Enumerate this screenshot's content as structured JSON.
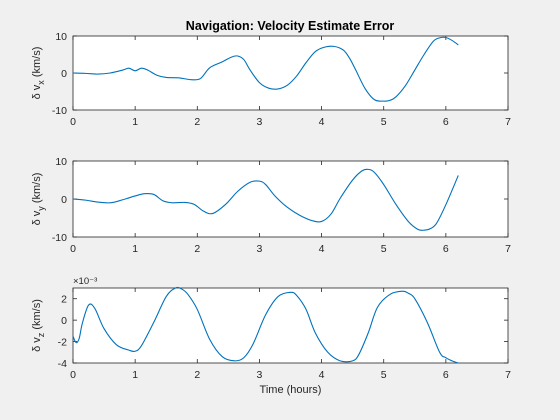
{
  "figure": {
    "title": "Navigation: Velocity Estimate Error",
    "background": "#f0f0f0",
    "axes_background": "#ffffff",
    "line_color": "#0072bd"
  },
  "chart_data": [
    {
      "type": "line",
      "ylabel": {
        "main": "δ v",
        "sub": "x",
        "unit": " (km/s)"
      },
      "xlabel": "",
      "xlim": [
        0,
        7
      ],
      "ylim": [
        -10,
        10
      ],
      "xticks": [
        "0",
        "1",
        "2",
        "3",
        "4",
        "5",
        "6",
        "7"
      ],
      "yticks": [
        "-10",
        "0",
        "10"
      ],
      "ytick_values": [
        -10,
        0,
        10
      ],
      "exponent": "",
      "grid": false,
      "series": [
        {
          "x": [
            0,
            0.2,
            0.4,
            0.6,
            0.8,
            0.9,
            1.0,
            1.1,
            1.2,
            1.35,
            1.5,
            1.7,
            1.9,
            2.05,
            2.2,
            2.4,
            2.55,
            2.65,
            2.75,
            2.85,
            3.0,
            3.15,
            3.3,
            3.45,
            3.6,
            3.75,
            3.9,
            4.05,
            4.2,
            4.35,
            4.45,
            4.55,
            4.7,
            4.85,
            5.0,
            5.1,
            5.2,
            5.35,
            5.5,
            5.65,
            5.8,
            5.9,
            6.0,
            6.1,
            6.2
          ],
          "y": [
            0,
            -0.1,
            -0.3,
            0,
            0.8,
            1.3,
            0.6,
            1.3,
            0.8,
            -0.6,
            -1.2,
            -1.3,
            -1.8,
            -1.5,
            1.4,
            3.0,
            4.3,
            4.6,
            3.6,
            0.8,
            -2.6,
            -4.1,
            -4.3,
            -3.3,
            -0.8,
            2.8,
            5.8,
            7.0,
            7.2,
            6.2,
            4.0,
            0.8,
            -4.2,
            -7.2,
            -7.6,
            -7.4,
            -6.4,
            -3.4,
            0.8,
            5.0,
            8.6,
            9.5,
            9.6,
            8.8,
            7.6
          ]
        }
      ]
    },
    {
      "type": "line",
      "ylabel": {
        "main": "δ v",
        "sub": "y",
        "unit": " (km/s)"
      },
      "xlabel": "",
      "xlim": [
        0,
        7
      ],
      "ylim": [
        -10,
        10
      ],
      "xticks": [
        "0",
        "1",
        "2",
        "3",
        "4",
        "5",
        "6",
        "7"
      ],
      "yticks": [
        "-10",
        "0",
        "10"
      ],
      "ytick_values": [
        -10,
        0,
        10
      ],
      "exponent": "",
      "grid": false,
      "series": [
        {
          "x": [
            0,
            0.2,
            0.4,
            0.6,
            0.8,
            1.0,
            1.15,
            1.3,
            1.45,
            1.6,
            1.8,
            1.95,
            2.1,
            2.25,
            2.45,
            2.65,
            2.85,
            3.0,
            3.1,
            3.25,
            3.45,
            3.65,
            3.85,
            4.0,
            4.15,
            4.3,
            4.5,
            4.65,
            4.75,
            4.85,
            5.0,
            5.2,
            5.4,
            5.55,
            5.65,
            5.75,
            5.85,
            6.0,
            6.2
          ],
          "y": [
            0,
            -0.3,
            -0.8,
            -1.0,
            -0.2,
            0.8,
            1.4,
            1.2,
            -0.5,
            -1.0,
            -0.9,
            -1.4,
            -3.2,
            -3.8,
            -1.5,
            2.0,
            4.4,
            4.7,
            3.8,
            0.8,
            -2.2,
            -4.3,
            -5.7,
            -5.9,
            -4.0,
            0.2,
            5.0,
            7.4,
            7.8,
            7.0,
            3.8,
            -1.5,
            -6.0,
            -8.0,
            -8.2,
            -7.8,
            -6.4,
            -1.5,
            6.2
          ]
        }
      ]
    },
    {
      "type": "line",
      "ylabel": {
        "main": "δ v",
        "sub": "z",
        "unit": " (km/s)"
      },
      "xlabel": "Time (hours)",
      "xlim": [
        0,
        7
      ],
      "ylim": [
        -0.004,
        0.003
      ],
      "xticks": [
        "0",
        "1",
        "2",
        "3",
        "4",
        "5",
        "6",
        "7"
      ],
      "yticks": [
        "-4",
        "-2",
        "0",
        "2"
      ],
      "ytick_values": [
        -0.004,
        -0.002,
        0,
        0.002
      ],
      "exponent": "×10⁻³",
      "grid": false,
      "series": [
        {
          "x": [
            0,
            0.05,
            0.1,
            0.15,
            0.25,
            0.35,
            0.5,
            0.7,
            0.9,
            1.0,
            1.1,
            1.3,
            1.5,
            1.65,
            1.75,
            1.85,
            2.0,
            2.2,
            2.4,
            2.6,
            2.75,
            2.9,
            3.1,
            3.3,
            3.5,
            3.6,
            3.75,
            3.9,
            4.1,
            4.3,
            4.5,
            4.6,
            4.75,
            4.9,
            5.1,
            5.3,
            5.4,
            5.5,
            5.7,
            5.9,
            6.0,
            6.1,
            6.2
          ],
          "y": [
            -0.0015,
            -0.0021,
            -0.0017,
            -0.0003,
            0.0014,
            0.0011,
            -0.0008,
            -0.0023,
            -0.0028,
            -0.0029,
            -0.0024,
            -0.0002,
            0.0022,
            0.003,
            0.0029,
            0.0024,
            0.001,
            -0.0018,
            -0.0034,
            -0.0038,
            -0.0035,
            -0.0022,
            0.0005,
            0.0022,
            0.0026,
            0.0023,
            0.001,
            -0.0012,
            -0.003,
            -0.0038,
            -0.0038,
            -0.0032,
            -0.0012,
            0.0012,
            0.0024,
            0.0027,
            0.0025,
            0.002,
            -0.0002,
            -0.003,
            -0.0035,
            -0.0038,
            -0.004
          ]
        }
      ]
    }
  ]
}
